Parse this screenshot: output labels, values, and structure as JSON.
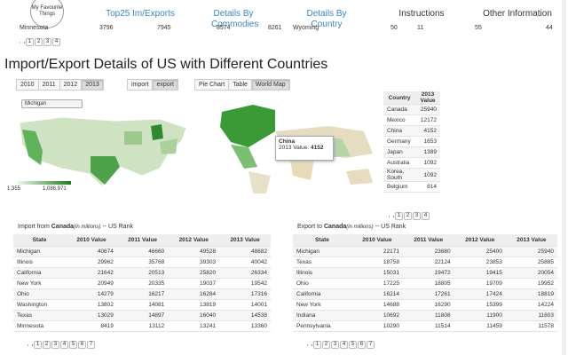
{
  "nav": {
    "logo": "My Favourite Things",
    "links": [
      "Top25 Im/Exports",
      "Details By Commodies",
      "Details By Country",
      "Instructions",
      "Other Information"
    ]
  },
  "top_table": {
    "left": [
      "Minnesota",
      3796,
      7945,
      8574,
      8261
    ],
    "right": [
      "Wyoming",
      50,
      11,
      55,
      44
    ],
    "pages": [
      1,
      2,
      3,
      4
    ]
  },
  "heading": "Import/Export Details of US with Different Countries",
  "years": [
    "2010",
    "2011",
    "2012",
    "2013"
  ],
  "modes": [
    "import",
    "export"
  ],
  "views": [
    "Pie Chart",
    "Table",
    "World Map"
  ],
  "state_select": "Michigan",
  "map_legend": {
    "min": "1,355",
    "max": "1,086,971"
  },
  "tooltip": {
    "title": "China",
    "label": "2013 Value:",
    "value": 4152
  },
  "country_table": {
    "headers": [
      "Country",
      "2013 Value"
    ],
    "rows": [
      [
        "Canada",
        25940
      ],
      [
        "Mexico",
        12172
      ],
      [
        "China",
        4152
      ],
      [
        "Germany",
        1653
      ],
      [
        "Japan",
        1389
      ],
      [
        "Australia",
        1092
      ],
      [
        "Korea, South",
        1092
      ],
      [
        "Belgium",
        814
      ]
    ],
    "pages": [
      1,
      2,
      3,
      4
    ]
  },
  "import": {
    "prefix": "Import from",
    "country": "Canada",
    "unit": "(in millions)",
    "suffix": "-- US Rank",
    "headers": [
      "State",
      "2010 Value",
      "2011 Value",
      "2012 Value",
      "2013 Value"
    ],
    "rows": [
      [
        "Michigan",
        40674,
        46660,
        49528,
        48682
      ],
      [
        "Illinois",
        29962,
        35768,
        39303,
        40042
      ],
      [
        "California",
        21642,
        20513,
        25820,
        26334
      ],
      [
        "New York",
        20949,
        20335,
        19037,
        19542
      ],
      [
        "Ohio",
        14279,
        16217,
        16284,
        17316
      ],
      [
        "Washington",
        13802,
        14081,
        13819,
        14001
      ],
      [
        "Texas",
        13029,
        14897,
        16040,
        14538
      ],
      [
        "Minnesota",
        8419,
        13112,
        13241,
        13360
      ]
    ],
    "pages": [
      1,
      2,
      3,
      4,
      5,
      6,
      7
    ]
  },
  "export": {
    "prefix": "Export to",
    "country": "Canada",
    "unit": "(in millions)",
    "suffix": "-- US Rank",
    "headers": [
      "State",
      "2010 Value",
      "2011 Value",
      "2012 Value",
      "2013 Value"
    ],
    "rows": [
      [
        "Michigan",
        22171,
        23680,
        25400,
        25940
      ],
      [
        "Texas",
        18758,
        22124,
        23853,
        25885
      ],
      [
        "Illinois",
        15031,
        19472,
        19415,
        20054
      ],
      [
        "Ohio",
        17225,
        18805,
        19709,
        19952
      ],
      [
        "California",
        16214,
        17261,
        17424,
        18819
      ],
      [
        "New York",
        14688,
        16290,
        15399,
        14224
      ],
      [
        "Indiana",
        10692,
        11808,
        11900,
        11803
      ],
      [
        "Pennsylvania",
        10290,
        11514,
        11459,
        11578
      ]
    ],
    "pages": [
      1,
      2,
      3,
      4,
      5,
      6,
      7
    ]
  }
}
